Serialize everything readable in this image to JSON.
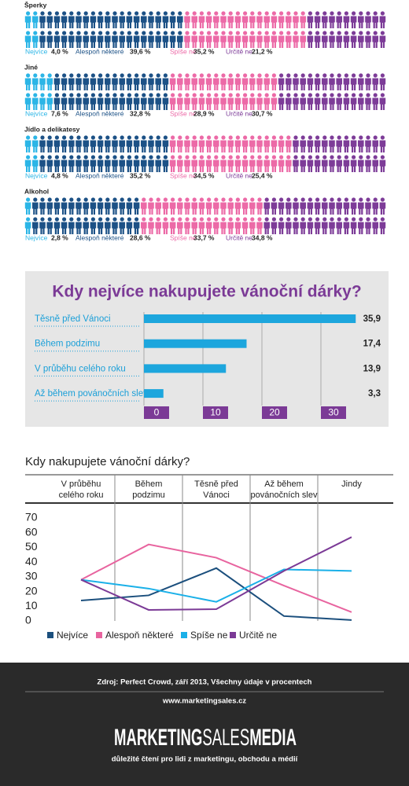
{
  "chart_data": [
    {
      "type": "pictogram",
      "categories": [
        "Šperky",
        "Jiné",
        "Jídlo a delikatesy",
        "Alkohol"
      ],
      "series": [
        {
          "name": "Nejvíce",
          "color": "#2bb5e6",
          "values": [
            4.0,
            7.6,
            4.8,
            2.8
          ],
          "value_labels": [
            "4,0 %",
            "7,6 %",
            "4,8 %",
            "2,8 %"
          ]
        },
        {
          "name": "Alespoň některé",
          "color": "#1c5186",
          "values": [
            39.6,
            32.8,
            35.2,
            28.6
          ],
          "value_labels": [
            "39,6 %",
            "32,8 %",
            "35,2 %",
            "28,6 %"
          ]
        },
        {
          "name": "Spíše ne",
          "color": "#ec6aa7",
          "values": [
            35.2,
            28.9,
            34.5,
            33.7
          ],
          "value_labels": [
            "35,2 %",
            "28,9 %",
            "34,5 %",
            "33,7 %"
          ]
        },
        {
          "name": "Určitě ne",
          "color": "#7d3c98",
          "values": [
            21.2,
            30.7,
            25.4,
            34.8
          ],
          "value_labels": [
            "21,2 %",
            "30,7 %",
            "25,4 %",
            "34,8 %"
          ]
        }
      ]
    },
    {
      "type": "bar",
      "title": "Kdy nejvíce nakupujete vánoční dárky?",
      "categories": [
        "Těsně před Vánoci",
        "Během podzimu",
        "V průběhu celého roku",
        "Až během povánočních slev"
      ],
      "values": [
        35.9,
        17.4,
        13.9,
        3.3
      ],
      "value_labels": [
        "35,9",
        "17,4",
        "13,9",
        "3,3"
      ],
      "color": "#1da6dd",
      "xlim": [
        0,
        36
      ],
      "xticks": [
        0,
        10,
        20,
        30
      ],
      "grid": true,
      "tick_color": "#7b3a96"
    },
    {
      "type": "line",
      "title": "Kdy nakupujete vánoční dárky?",
      "categories": [
        "V průběhu\ncelého roku",
        "Během\npodzimu",
        "Těsně před\nVánoci",
        "Až během\npovánočních slev",
        "Jindy"
      ],
      "series": [
        {
          "name": "Nejvíce",
          "color": "#1b4f7d",
          "values": [
            13.9,
            17.4,
            35.9,
            3.3,
            0.6
          ]
        },
        {
          "name": "Alespoň některé",
          "color": "#e8649f",
          "values": [
            28,
            52,
            43,
            24,
            6
          ]
        },
        {
          "name": "Spíše ne",
          "color": "#1ab0e8",
          "values": [
            28,
            22,
            13,
            35,
            34
          ]
        },
        {
          "name": "Určitě ne",
          "color": "#7b3a96",
          "values": [
            28,
            7.5,
            8,
            34,
            57
          ]
        }
      ],
      "ylim": [
        0,
        70
      ],
      "yticks": [
        0,
        10,
        20,
        30,
        40,
        50,
        60,
        70
      ],
      "grid": false,
      "legend": "bottom"
    }
  ],
  "footer": {
    "source": "Zdroj: Perfect Crowd, září 2013, Všechny údaje v procentech",
    "url": "www.marketingsales.cz",
    "logo": [
      "MARKETING",
      "SALES",
      "MEDIA"
    ],
    "tagline": "důležité čtení pro lidi z marketingu, obchodu a médií"
  }
}
